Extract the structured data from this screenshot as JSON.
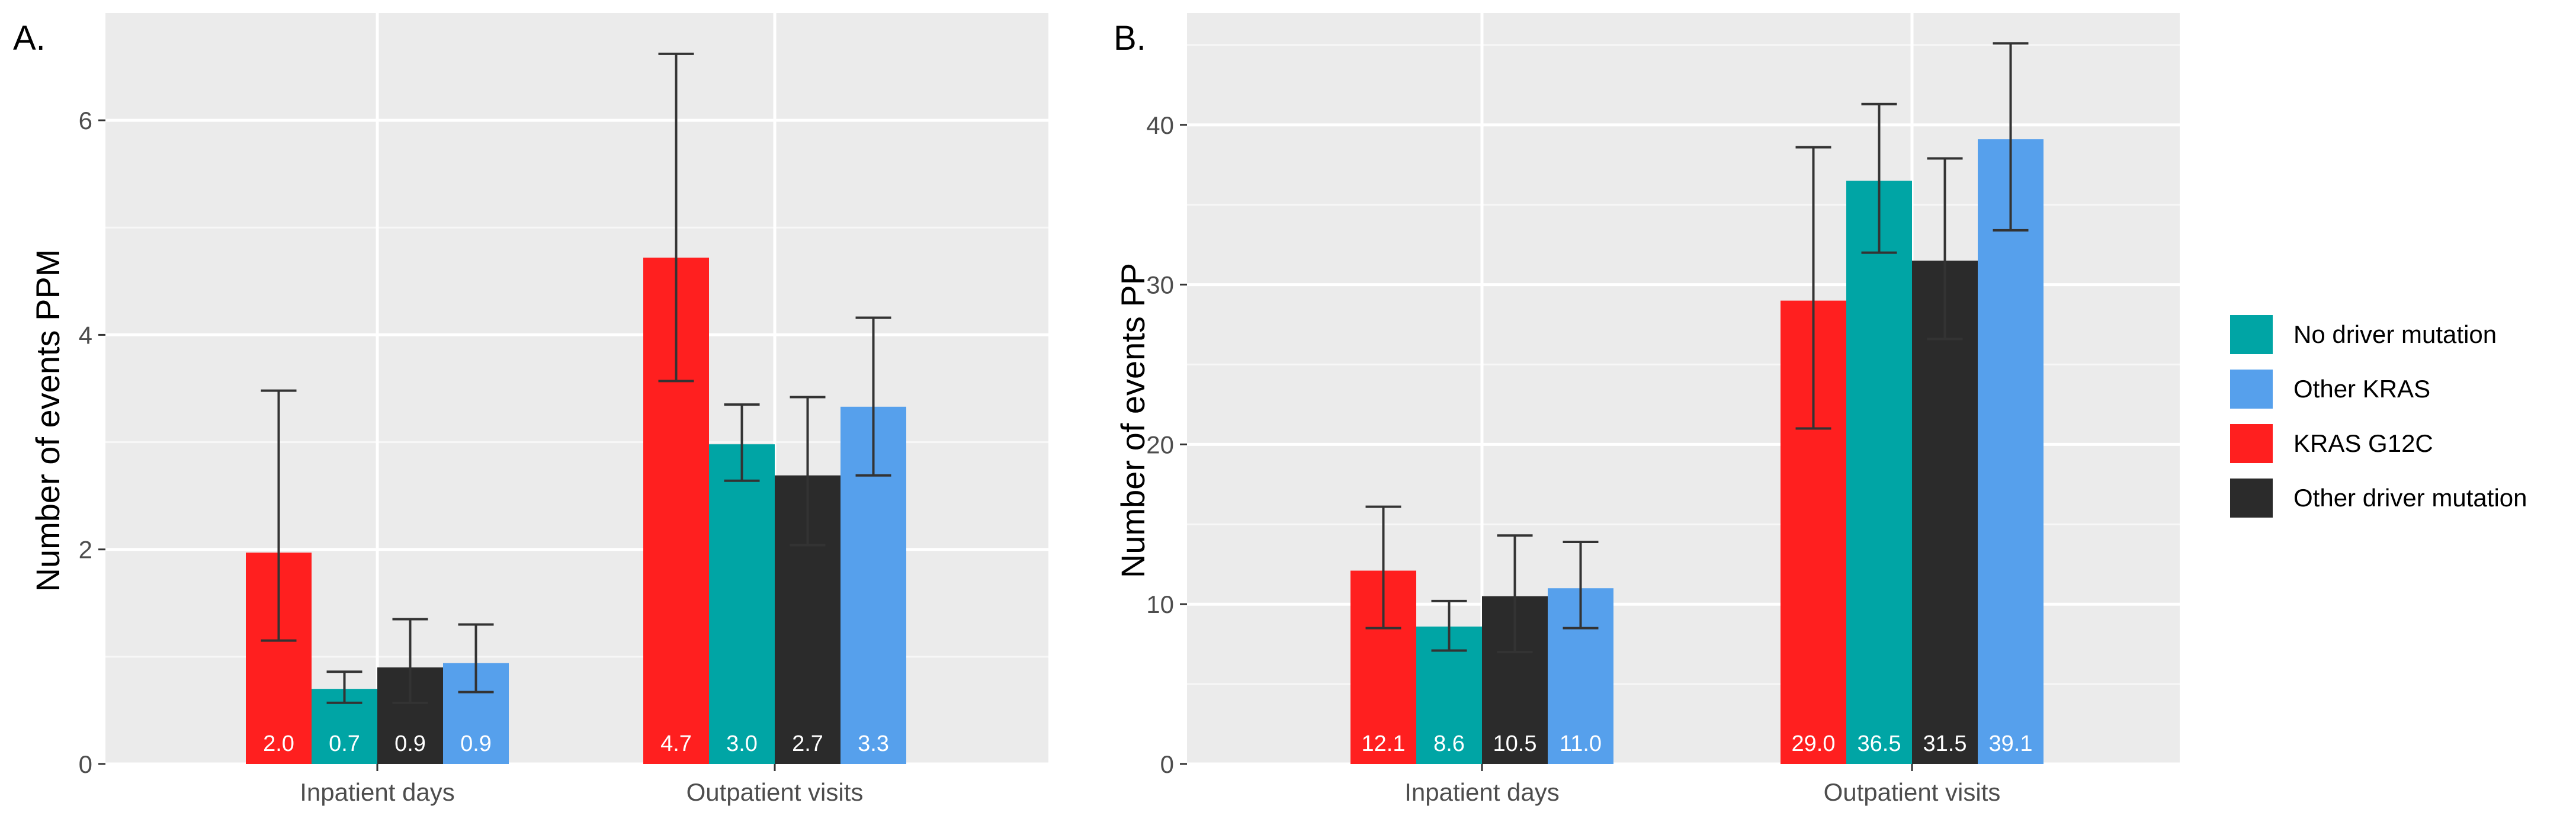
{
  "chart_data": [
    {
      "type": "bar",
      "panel_label": "A.",
      "title": "",
      "xlabel": "",
      "ylabel": "Number of events PPM",
      "ylim": [
        0,
        7
      ],
      "yticks": [
        0,
        2,
        4,
        6
      ],
      "grid": true,
      "categories": [
        "Inpatient days",
        "Outpatient visits"
      ],
      "series": [
        {
          "name": "KRAS G12C",
          "color": "#ff1f1f",
          "values": [
            1.97,
            4.72
          ],
          "labels": [
            "2.0",
            "4.7"
          ],
          "error_low": [
            1.15,
            3.57
          ],
          "error_high": [
            3.48,
            6.62
          ]
        },
        {
          "name": "No driver mutation",
          "color": "#00a5a5",
          "values": [
            0.7,
            2.98
          ],
          "labels": [
            "0.7",
            "3.0"
          ],
          "error_low": [
            0.57,
            2.64
          ],
          "error_high": [
            0.86,
            3.35
          ]
        },
        {
          "name": "Other driver mutation",
          "color": "#2b2b2b",
          "values": [
            0.9,
            2.69
          ],
          "labels": [
            "0.9",
            "2.7"
          ],
          "error_low": [
            0.57,
            2.04
          ],
          "error_high": [
            1.35,
            3.42
          ]
        },
        {
          "name": "Other KRAS",
          "color": "#56a0ec",
          "values": [
            0.94,
            3.33
          ],
          "labels": [
            "0.9",
            "3.3"
          ],
          "error_low": [
            0.67,
            2.69
          ],
          "error_high": [
            1.3,
            4.16
          ]
        }
      ]
    },
    {
      "type": "bar",
      "panel_label": "B.",
      "title": "",
      "xlabel": "",
      "ylabel": "Number of events PP",
      "ylim": [
        0,
        47
      ],
      "yticks": [
        0,
        10,
        20,
        30,
        40
      ],
      "grid": true,
      "categories": [
        "Inpatient days",
        "Outpatient visits"
      ],
      "series": [
        {
          "name": "KRAS G12C",
          "color": "#ff1f1f",
          "values": [
            12.1,
            29.0
          ],
          "labels": [
            "12.1",
            "29.0"
          ],
          "error_low": [
            8.5,
            21.0
          ],
          "error_high": [
            16.1,
            38.6
          ]
        },
        {
          "name": "No driver mutation",
          "color": "#00a5a5",
          "values": [
            8.6,
            36.5
          ],
          "labels": [
            "8.6",
            "36.5"
          ],
          "error_low": [
            7.1,
            32.0
          ],
          "error_high": [
            10.2,
            41.3
          ]
        },
        {
          "name": "Other driver mutation",
          "color": "#2b2b2b",
          "values": [
            10.5,
            31.5
          ],
          "labels": [
            "10.5",
            "31.5"
          ],
          "error_low": [
            7.0,
            26.6
          ],
          "error_high": [
            14.3,
            37.9
          ]
        },
        {
          "name": "Other KRAS",
          "color": "#56a0ec",
          "values": [
            11.0,
            39.1
          ],
          "labels": [
            "11.0",
            "39.1"
          ],
          "error_low": [
            8.5,
            33.4
          ],
          "error_high": [
            13.9,
            45.1
          ]
        }
      ]
    }
  ],
  "legend": {
    "placement": "right",
    "items": [
      {
        "label": "No driver mutation",
        "color": "#00a5a5"
      },
      {
        "label": "Other KRAS",
        "color": "#56a0ec"
      },
      {
        "label": "KRAS G12C",
        "color": "#ff1f1f"
      },
      {
        "label": "Other driver mutation",
        "color": "#2b2b2b"
      }
    ]
  }
}
